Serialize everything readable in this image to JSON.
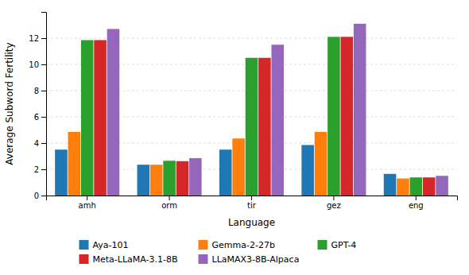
{
  "chart_data": {
    "type": "bar",
    "categories": [
      "amh",
      "orm",
      "tir",
      "gez",
      "eng"
    ],
    "series": [
      {
        "name": "Aya-101",
        "values": [
          3.5,
          2.35,
          3.5,
          3.85,
          1.65
        ]
      },
      {
        "name": "Gemma-2-27b",
        "values": [
          4.85,
          2.35,
          4.35,
          4.85,
          1.3
        ]
      },
      {
        "name": "GPT-4",
        "values": [
          11.85,
          2.65,
          10.5,
          12.1,
          1.38
        ]
      },
      {
        "name": "Meta-LLaMA-3.1-8B",
        "values": [
          11.85,
          2.62,
          10.5,
          12.1,
          1.38
        ]
      },
      {
        "name": "LLaMAX3-8B-Alpaca",
        "values": [
          12.7,
          2.85,
          11.5,
          13.1,
          1.5
        ]
      }
    ],
    "xlabel": "Language",
    "ylabel": "Average Subword Fertility",
    "ylim": [
      0,
      14
    ],
    "yticks": [
      0,
      2,
      4,
      6,
      8,
      10,
      12
    ],
    "grid": true,
    "legend": "bottom"
  }
}
